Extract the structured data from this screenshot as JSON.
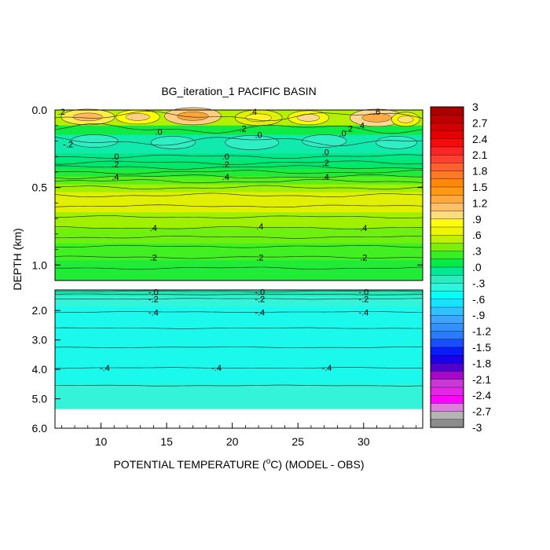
{
  "chart_data": {
    "type": "contour",
    "title": "BG_iteration_1 PACIFIC BASIN",
    "xlabel_prefix": "POTENTIAL TEMPERATURE (",
    "xlabel_sup": "o",
    "xlabel_suffix": "C) (MODEL - OBS)",
    "ylabel": "DEPTH (km)",
    "x_range": [
      6.5,
      34.5
    ],
    "x_ticks": [
      "10",
      "15",
      "20",
      "25",
      "30"
    ],
    "x_tick_values": [
      10,
      15,
      20,
      25,
      30
    ],
    "upper_panel": {
      "y_range": [
        0.0,
        1.1
      ],
      "y_ticks": [
        "0.0",
        "0.5",
        "1.0"
      ],
      "y_tick_values": [
        0.0,
        0.5,
        1.0
      ],
      "bands": [
        {
          "y0": 0.0,
          "y1": 0.1,
          "value": 0.5
        },
        {
          "y0": 0.1,
          "y1": 0.16,
          "value": 0.1
        },
        {
          "y0": 0.16,
          "y1": 0.28,
          "value": -0.15
        },
        {
          "y0": 0.28,
          "y1": 0.33,
          "value": -0.05
        },
        {
          "y0": 0.33,
          "y1": 0.38,
          "value": 0.0
        },
        {
          "y0": 0.38,
          "y1": 0.43,
          "value": 0.15
        },
        {
          "y0": 0.43,
          "y1": 0.48,
          "value": 0.3
        },
        {
          "y0": 0.48,
          "y1": 0.53,
          "value": 0.45
        },
        {
          "y0": 0.53,
          "y1": 0.66,
          "value": 0.6
        },
        {
          "y0": 0.66,
          "y1": 0.76,
          "value": 0.45
        },
        {
          "y0": 0.76,
          "y1": 0.86,
          "value": 0.35
        },
        {
          "y0": 0.86,
          "y1": 0.97,
          "value": 0.25
        },
        {
          "y0": 0.97,
          "y1": 1.1,
          "value": 0.15
        }
      ],
      "contours": [
        0.04,
        0.12,
        0.2,
        0.3,
        0.34,
        0.37,
        0.4,
        0.43,
        0.46,
        0.5,
        0.55,
        0.62,
        0.69,
        0.76,
        0.82,
        0.88,
        0.95,
        1.02
      ],
      "labels": [
        {
          "text": ".2",
          "x": 7.0,
          "y": 0.01
        },
        {
          "text": ".4",
          "x": 21.6,
          "y": 0.01
        },
        {
          "text": ".6",
          "x": 31.0,
          "y": 0.01
        },
        {
          "text": ".0",
          "x": 14.4,
          "y": 0.14
        },
        {
          "text": ".2",
          "x": 20.8,
          "y": 0.12
        },
        {
          "text": ".0",
          "x": 22.0,
          "y": 0.16
        },
        {
          "text": ".2",
          "x": 28.9,
          "y": 0.12
        },
        {
          "text": ".4",
          "x": 29.8,
          "y": 0.1
        },
        {
          "text": ".0",
          "x": 28.4,
          "y": 0.15
        },
        {
          "text": "-.2",
          "x": 7.5,
          "y": 0.22
        },
        {
          "text": ".0",
          "x": 11.1,
          "y": 0.3
        },
        {
          "text": ".2",
          "x": 11.1,
          "y": 0.35
        },
        {
          "text": ".4",
          "x": 11.1,
          "y": 0.43
        },
        {
          "text": ".0",
          "x": 19.5,
          "y": 0.3
        },
        {
          "text": ".2",
          "x": 19.5,
          "y": 0.35
        },
        {
          "text": ".4",
          "x": 19.5,
          "y": 0.43
        },
        {
          "text": ".0",
          "x": 27.1,
          "y": 0.27
        },
        {
          "text": ".2",
          "x": 27.1,
          "y": 0.34
        },
        {
          "text": ".4",
          "x": 27.1,
          "y": 0.43
        },
        {
          "text": ".4",
          "x": 14.0,
          "y": 0.76
        },
        {
          "text": ".4",
          "x": 22.1,
          "y": 0.75
        },
        {
          "text": ".4",
          "x": 30.0,
          "y": 0.76
        },
        {
          "text": ".2",
          "x": 14.0,
          "y": 0.95
        },
        {
          "text": ".2",
          "x": 22.1,
          "y": 0.95
        },
        {
          "text": ".2",
          "x": 30.0,
          "y": 0.95
        }
      ]
    },
    "lower_panel": {
      "y_range": [
        1.3,
        6.0
      ],
      "y_ticks": [
        "2.0",
        "3.0",
        "4.0",
        "5.0",
        "6.0"
      ],
      "y_tick_values": [
        2.0,
        3.0,
        4.0,
        5.0,
        6.0
      ],
      "data_bottom": 5.35,
      "bands": [
        {
          "y0": 1.3,
          "y1": 1.52,
          "value": -0.2
        },
        {
          "y0": 1.52,
          "y1": 1.85,
          "value": -0.35
        },
        {
          "y0": 1.85,
          "y1": 4.5,
          "value": -0.45
        },
        {
          "y0": 4.5,
          "y1": 5.35,
          "value": -0.35
        }
      ],
      "contours": [
        1.35,
        1.45,
        1.6,
        2.05,
        2.6,
        3.25,
        3.95,
        4.55
      ],
      "labels": [
        {
          "text": "-.0",
          "x": 14.0,
          "y": 1.37
        },
        {
          "text": "-.0",
          "x": 22.1,
          "y": 1.37
        },
        {
          "text": "-.0",
          "x": 30.0,
          "y": 1.37
        },
        {
          "text": "-.2",
          "x": 14.0,
          "y": 1.61
        },
        {
          "text": "-.2",
          "x": 22.1,
          "y": 1.61
        },
        {
          "text": "-.2",
          "x": 30.0,
          "y": 1.61
        },
        {
          "text": "-.4",
          "x": 14.0,
          "y": 2.06
        },
        {
          "text": "-.4",
          "x": 22.1,
          "y": 2.06
        },
        {
          "text": "-.4",
          "x": 30.0,
          "y": 2.06
        },
        {
          "text": "-.4",
          "x": 10.3,
          "y": 3.95
        },
        {
          "text": "-.4",
          "x": 18.8,
          "y": 3.95
        },
        {
          "text": "-.4",
          "x": 27.2,
          "y": 3.95
        }
      ]
    },
    "colorbar": {
      "range": [
        -3,
        3
      ],
      "step": 0.15,
      "labels": [
        "3",
        "2.7",
        "2.4",
        "2.1",
        "1.8",
        "1.5",
        "1.2",
        ".9",
        ".6",
        ".3",
        ".0",
        "-.3",
        "-.6",
        "-.9",
        "-1.2",
        "-1.5",
        "-1.8",
        "-2.1",
        "-2.4",
        "-2.7",
        "-3"
      ],
      "label_values": [
        3,
        2.7,
        2.4,
        2.1,
        1.8,
        1.5,
        1.2,
        0.9,
        0.6,
        0.3,
        0.0,
        -0.3,
        -0.6,
        -0.9,
        -1.2,
        -1.5,
        -1.8,
        -2.1,
        -2.4,
        -2.7,
        -3
      ]
    }
  }
}
